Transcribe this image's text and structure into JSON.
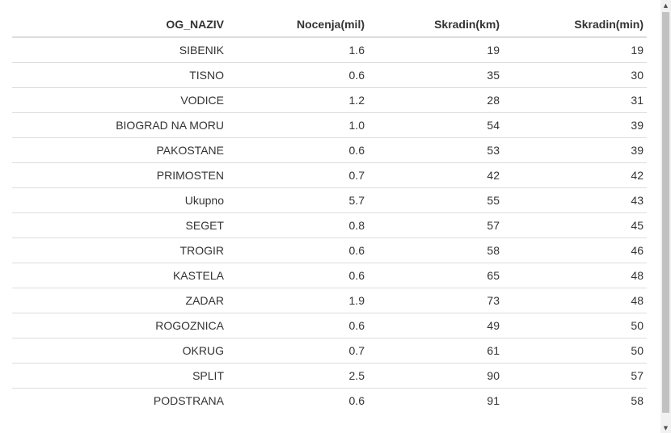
{
  "table": {
    "columns": [
      "OG_NAZIV",
      "Nocenja(mil)",
      "Skradin(km)",
      "Skradin(min)"
    ],
    "rows": [
      [
        "SIBENIK",
        "1.6",
        "19",
        "19"
      ],
      [
        "TISNO",
        "0.6",
        "35",
        "30"
      ],
      [
        "VODICE",
        "1.2",
        "28",
        "31"
      ],
      [
        "BIOGRAD NA MORU",
        "1.0",
        "54",
        "39"
      ],
      [
        "PAKOSTANE",
        "0.6",
        "53",
        "39"
      ],
      [
        "PRIMOSTEN",
        "0.7",
        "42",
        "42"
      ],
      [
        "Ukupno",
        "5.7",
        "55",
        "43"
      ],
      [
        "SEGET",
        "0.8",
        "57",
        "45"
      ],
      [
        "TROGIR",
        "0.6",
        "58",
        "46"
      ],
      [
        "KASTELA",
        "0.6",
        "65",
        "48"
      ],
      [
        "ZADAR",
        "1.9",
        "73",
        "48"
      ],
      [
        "ROGOZNICA",
        "0.6",
        "49",
        "50"
      ],
      [
        "OKRUG",
        "0.7",
        "61",
        "50"
      ],
      [
        "SPLIT",
        "2.5",
        "90",
        "57"
      ],
      [
        "PODSTRANA",
        "0.6",
        "91",
        "58"
      ]
    ]
  },
  "scrollbar": {
    "up_arrow": "▲",
    "down_arrow": "▼"
  }
}
